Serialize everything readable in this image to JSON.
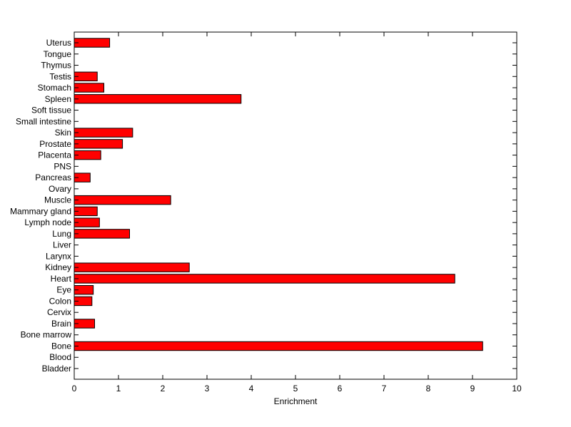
{
  "chart_data": {
    "type": "bar",
    "orientation": "horizontal",
    "xlabel": "Enrichment",
    "ylabel": "",
    "xlim": [
      0,
      10
    ],
    "xticks": [
      0,
      1,
      2,
      3,
      4,
      5,
      6,
      7,
      8,
      9,
      10
    ],
    "grid": false,
    "bar_color": "#ff0000",
    "bar_edge_color": "#000000",
    "categories": [
      "Bladder",
      "Blood",
      "Bone",
      "Bone marrow",
      "Brain",
      "Cervix",
      "Colon",
      "Eye",
      "Heart",
      "Kidney",
      "Larynx",
      "Liver",
      "Lung",
      "Lymph node",
      "Mammary gland",
      "Muscle",
      "Ovary",
      "Pancreas",
      "PNS",
      "Placenta",
      "Prostate",
      "Skin",
      "Small intestine",
      "Soft tissue",
      "Spleen",
      "Stomach",
      "Testis",
      "Thymus",
      "Tongue",
      "Uterus"
    ],
    "values": [
      0,
      0,
      9.23,
      0,
      0.46,
      0,
      0.4,
      0.43,
      8.6,
      2.6,
      0,
      0,
      1.25,
      0.57,
      0.52,
      2.18,
      0,
      0.36,
      0,
      0.6,
      1.09,
      1.32,
      0,
      0,
      3.77,
      0.67,
      0.52,
      0,
      0,
      0.8
    ]
  }
}
